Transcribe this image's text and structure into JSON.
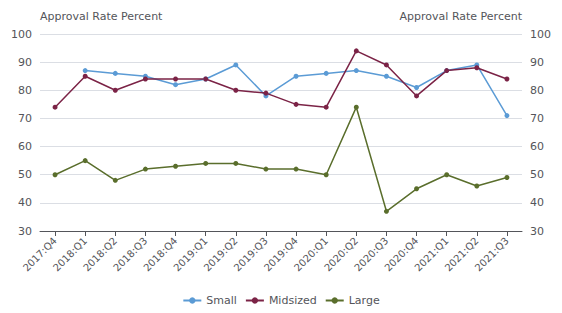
{
  "chart_data": {
    "type": "line",
    "ylabel": "Approval Rate Percent",
    "y2label": "Approval Rate Percent",
    "categories": [
      "2017:Q4",
      "2018:Q1",
      "2018:Q2",
      "2018:Q3",
      "2018:Q4",
      "2019:Q1",
      "2019:Q2",
      "2019:Q3",
      "2019:Q4",
      "2020:Q1",
      "2020:Q2",
      "2020:Q3",
      "2020:Q4",
      "2021:Q1",
      "2021:Q2",
      "2021:Q3"
    ],
    "series": [
      {
        "name": "Small",
        "color": "#5b9bd5",
        "values": [
          null,
          87,
          86,
          85,
          82,
          84,
          89,
          78,
          85,
          86,
          87,
          85,
          81,
          87,
          89,
          71
        ]
      },
      {
        "name": "Midsized",
        "color": "#7b2346",
        "values": [
          74,
          85,
          80,
          84,
          84,
          84,
          80,
          79,
          75,
          74,
          94,
          89,
          78,
          87,
          88,
          84
        ]
      },
      {
        "name": "Large",
        "color": "#5a6e2c",
        "values": [
          50,
          55,
          48,
          52,
          53,
          54,
          54,
          52,
          52,
          50,
          74,
          37,
          45,
          50,
          46,
          49
        ]
      }
    ],
    "ylim": [
      30,
      100
    ],
    "yticks": [
      30,
      40,
      50,
      60,
      70,
      80,
      90,
      100
    ],
    "y2lim": [
      30,
      100
    ],
    "y2ticks": [
      30,
      40,
      50,
      60,
      70,
      80,
      90,
      100
    ],
    "grid": true,
    "legend": "bottom",
    "marker": "circle"
  }
}
